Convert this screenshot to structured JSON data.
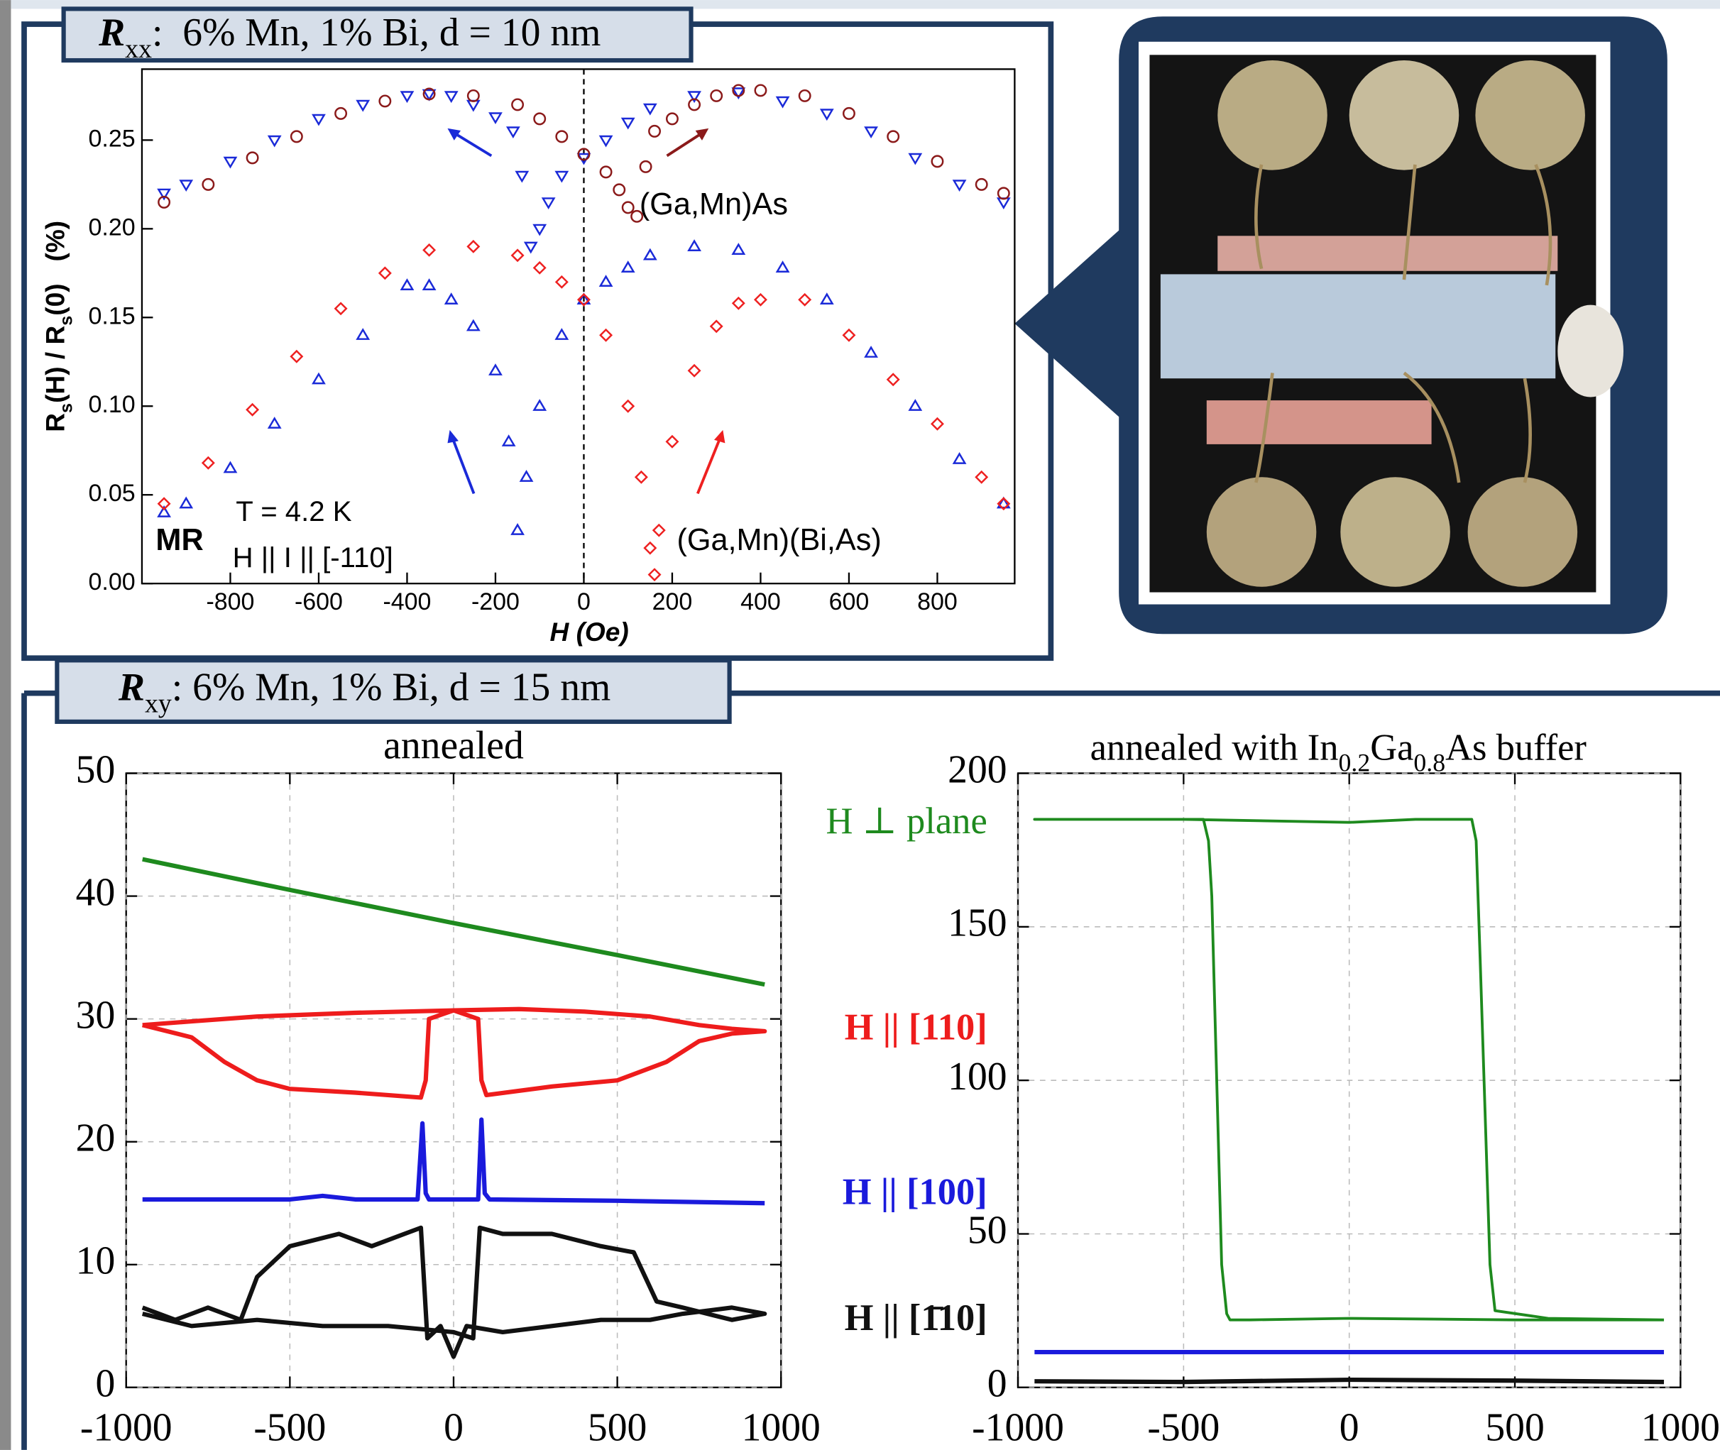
{
  "chart_data": [
    {
      "type": "scatter",
      "heading": [
        {
          "text": "R"
        },
        {
          "text": "xx",
          "sub": true
        },
        {
          "text": ":  6% Mn, 1% Bi, d = 10 nm"
        }
      ],
      "ylabel": [
        {
          "text": "R"
        },
        {
          "text": "s",
          "sub": true
        },
        {
          "text": "(H) / R"
        },
        {
          "text": "s",
          "sub": true
        },
        {
          "text": "(0)   (%)"
        }
      ],
      "xlabel": "H (Oe)",
      "annotations": [
        "MR",
        "T = 4.2 K",
        "H || I || [-110]",
        "(Ga,Mn)As",
        "(Ga,Mn)(Bi,As)"
      ],
      "zero_line": true,
      "xlim": [
        -1000,
        975
      ],
      "ylim": [
        0,
        0.29
      ],
      "xticks": [
        -800,
        -600,
        -400,
        -200,
        0,
        200,
        400,
        600,
        800
      ],
      "yticks": [
        {
          "value": 0,
          "label": "0.00"
        },
        0.05,
        {
          "value": 0.1,
          "label": "0.10"
        },
        0.15,
        {
          "value": 0.2,
          "label": "0.20"
        },
        0.25
      ],
      "series": [
        {
          "color": "#1a2ad8",
          "marker": "v",
          "x": [
            950,
            850,
            750,
            650,
            550,
            450,
            350,
            250,
            150,
            100,
            50,
            0,
            -50,
            -80,
            -100,
            -120,
            -140,
            -160,
            -200,
            -250,
            -300,
            -350,
            -400,
            -500,
            -600,
            -700,
            -800,
            -900,
            -950
          ],
          "values": [
            0.215,
            0.225,
            0.24,
            0.255,
            0.265,
            0.272,
            0.277,
            0.275,
            0.268,
            0.26,
            0.25,
            0.24,
            0.23,
            0.215,
            0.2,
            0.19,
            0.23,
            0.255,
            0.263,
            0.27,
            0.275,
            0.276,
            0.275,
            0.27,
            0.262,
            0.25,
            0.238,
            0.225,
            0.22
          ]
        },
        {
          "color": "#8b1a1a",
          "marker": "o",
          "x": [
            -950,
            -850,
            -750,
            -650,
            -550,
            -450,
            -350,
            -250,
            -150,
            -100,
            -50,
            0,
            50,
            80,
            100,
            120,
            140,
            160,
            200,
            250,
            300,
            350,
            400,
            500,
            600,
            700,
            800,
            900,
            950
          ],
          "values": [
            0.215,
            0.225,
            0.24,
            0.252,
            0.265,
            0.272,
            0.276,
            0.275,
            0.27,
            0.262,
            0.252,
            0.242,
            0.232,
            0.222,
            0.212,
            0.207,
            0.235,
            0.255,
            0.262,
            0.27,
            0.275,
            0.278,
            0.278,
            0.275,
            0.265,
            0.252,
            0.238,
            0.225,
            0.22
          ]
        },
        {
          "color": "#1a2ad8",
          "marker": "^",
          "x": [
            950,
            850,
            750,
            650,
            550,
            450,
            350,
            250,
            150,
            100,
            50,
            0,
            -50,
            -100,
            -130,
            -150,
            -170,
            -200,
            -250,
            -300,
            -350,
            -400,
            -500,
            -600,
            -700,
            -800,
            -900,
            -950
          ],
          "values": [
            0.045,
            0.07,
            0.1,
            0.13,
            0.16,
            0.178,
            0.188,
            0.19,
            0.185,
            0.178,
            0.17,
            0.16,
            0.14,
            0.1,
            0.06,
            0.03,
            0.08,
            0.12,
            0.145,
            0.16,
            0.168,
            0.168,
            0.14,
            0.115,
            0.09,
            0.065,
            0.045,
            0.04
          ]
        },
        {
          "color": "#ee2020",
          "marker": "d",
          "x": [
            -950,
            -850,
            -750,
            -650,
            -550,
            -450,
            -350,
            -250,
            -150,
            -100,
            -50,
            0,
            50,
            100,
            130,
            150,
            160,
            170,
            200,
            250,
            300,
            350,
            400,
            500,
            600,
            700,
            800,
            900,
            950
          ],
          "values": [
            0.045,
            0.068,
            0.098,
            0.128,
            0.155,
            0.175,
            0.188,
            0.19,
            0.185,
            0.178,
            0.17,
            0.16,
            0.14,
            0.1,
            0.06,
            0.02,
            0.005,
            0.03,
            0.08,
            0.12,
            0.145,
            0.158,
            0.16,
            0.16,
            0.14,
            0.115,
            0.09,
            0.06,
            0.045
          ]
        }
      ]
    },
    {
      "type": "line",
      "heading": [
        {
          "text": "R"
        },
        {
          "text": "xy",
          "sub": true
        },
        {
          "text": ": 6% Mn, 1% Bi, d = 15 nm"
        }
      ],
      "title": "annealed",
      "grid": true,
      "xlim": [
        -1000,
        1000
      ],
      "ylim": [
        0,
        50
      ],
      "xticks": [
        -1000,
        -500,
        0,
        500,
        1000
      ],
      "yticks": [
        0,
        10,
        20,
        30,
        40,
        50
      ],
      "series": [
        {
          "name": "H ⊥ plane",
          "color": "#1e8a1e",
          "x": [
            -950,
            -500,
            0,
            500,
            950
          ],
          "values": [
            43,
            40.5,
            37.8,
            35.2,
            32.8
          ]
        },
        {
          "name": "H || [110]",
          "color": "#ee1c1c",
          "x": [
            -950,
            -800,
            -700,
            -600,
            -500,
            -300,
            -100,
            -85,
            -75,
            0,
            200,
            400,
            600,
            750,
            850,
            950,
            850,
            750,
            650,
            500,
            300,
            100,
            85,
            75,
            0,
            -300,
            -600,
            -800,
            -950
          ],
          "values": [
            29.5,
            28.5,
            26.5,
            25,
            24.3,
            24,
            23.6,
            25,
            30,
            30.7,
            30.8,
            30.6,
            30.2,
            29.5,
            29.2,
            29,
            28.8,
            28.2,
            26.5,
            25,
            24.5,
            23.8,
            25,
            30,
            30.7,
            30.5,
            30.2,
            29.8,
            29.5
          ]
        },
        {
          "name": "H || [100]",
          "color": "#1a1adc",
          "x": [
            -950,
            -500,
            -400,
            -300,
            -110,
            -95,
            -85,
            -75,
            0,
            75,
            85,
            95,
            110,
            500,
            950
          ],
          "values": [
            15.3,
            15.3,
            15.6,
            15.3,
            15.3,
            21.5,
            15.8,
            15.3,
            15.3,
            15.3,
            21.8,
            15.8,
            15.3,
            15.2,
            15.0
          ]
        },
        {
          "name": "H || [1̄10]",
          "color": "#111111",
          "x": [
            -950,
            -850,
            -750,
            -650,
            -600,
            -500,
            -350,
            -250,
            -150,
            -100,
            -80,
            -40,
            0,
            40,
            150,
            300,
            450,
            600,
            700,
            850,
            950,
            850,
            700,
            620,
            550,
            450,
            300,
            150,
            80,
            60,
            0,
            -200,
            -400,
            -600,
            -800,
            -950
          ],
          "values": [
            6.5,
            5.5,
            6.5,
            5.5,
            9,
            11.5,
            12.5,
            11.5,
            12.5,
            13,
            4,
            5,
            2.5,
            5,
            4.5,
            5,
            5.5,
            5.5,
            6,
            6.5,
            6,
            5.5,
            6.5,
            7,
            11,
            11.5,
            12.5,
            12.5,
            13,
            4,
            4.5,
            5,
            5,
            5.5,
            5,
            6
          ]
        }
      ]
    },
    {
      "type": "line",
      "title_parts": [
        {
          "text": "annealed with In"
        },
        {
          "text": "0.2",
          "sub": true
        },
        {
          "text": "Ga"
        },
        {
          "text": "0.8",
          "sub": true
        },
        {
          "text": "As buffer"
        }
      ],
      "grid": true,
      "xlim": [
        -1000,
        1000
      ],
      "ylim": [
        0,
        200
      ],
      "xticks": [
        -1000,
        -500,
        0,
        500,
        1000
      ],
      "yticks": [
        0,
        50,
        100,
        150,
        200
      ],
      "series": [
        {
          "color": "#1e8a1e",
          "x": [
            950,
            500,
            0,
            -300,
            -360,
            -370,
            -385,
            -400,
            -415,
            -425,
            -440,
            -600,
            -950,
            -500,
            0,
            200,
            370,
            383,
            395,
            410,
            425,
            440,
            600,
            950
          ],
          "values": [
            22,
            22,
            22.5,
            22,
            22,
            24,
            40,
            100,
            160,
            178,
            185,
            185,
            185,
            185,
            184,
            185,
            185,
            178,
            140,
            90,
            40,
            25,
            22.5,
            22
          ]
        },
        {
          "color": "#1a1adc",
          "x": [
            -950,
            950
          ],
          "values": [
            11.5,
            11.5
          ]
        },
        {
          "color": "#111111",
          "x": [
            -950,
            -500,
            0,
            500,
            950
          ],
          "values": [
            2,
            1.8,
            2.5,
            2.2,
            1.8
          ]
        }
      ]
    }
  ]
}
